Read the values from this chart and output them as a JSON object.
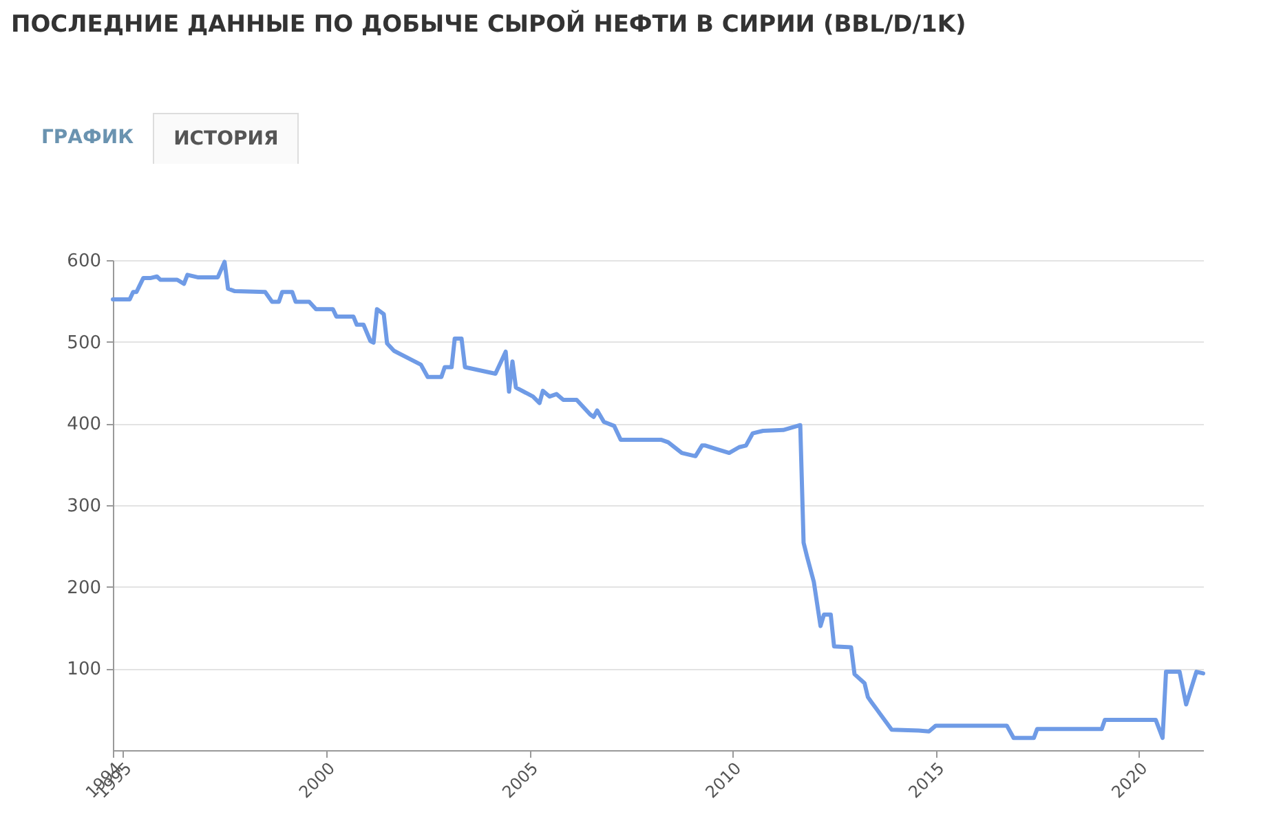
{
  "chart_data": {
    "type": "line",
    "title": "ПОСЛЕДНИЕ ДАННЫЕ ПО ДОБЫЧЕ СЫРОЙ НЕФТИ В СИРИИ (BBL/D/1K)",
    "annotations": [
      "ГРАФИК",
      "ИСТОРИЯ"
    ],
    "x": [
      "1994-10",
      "1995-03",
      "1995-04",
      "1995-05",
      "1995-07",
      "1995-09",
      "1995-11",
      "1995-12",
      "1996-05",
      "1996-07",
      "1996-08",
      "1996-11",
      "1997-05",
      "1997-07",
      "1997-08",
      "1997-10",
      "1998-07",
      "1998-09",
      "1998-11",
      "1998-12",
      "1999-03",
      "1999-04",
      "1999-08",
      "1999-10",
      "2000-03",
      "2000-04",
      "2000-09",
      "2000-10",
      "2000-12",
      "2001-02",
      "2001-03",
      "2001-04",
      "2001-06",
      "2001-07",
      "2001-09",
      "2002-05",
      "2002-07",
      "2002-11",
      "2002-12",
      "2003-02",
      "2003-03",
      "2003-05",
      "2003-06",
      "2004-03",
      "2004-06",
      "2004-07",
      "2004-08",
      "2004-09",
      "2005-02",
      "2005-04",
      "2005-05",
      "2005-07",
      "2005-09",
      "2005-11",
      "2006-03",
      "2006-07",
      "2006-08",
      "2006-09",
      "2006-11",
      "2007-02",
      "2007-04",
      "2008-04",
      "2008-06",
      "2008-10",
      "2009-02",
      "2009-04",
      "2009-05",
      "2009-08",
      "2009-12",
      "2010-03",
      "2010-05",
      "2010-07",
      "2010-10",
      "2011-04",
      "2011-09",
      "2011-10",
      "2011-11",
      "2012-01",
      "2012-03",
      "2012-04",
      "2012-06",
      "2012-07",
      "2012-12",
      "2013-01",
      "2013-04",
      "2013-05",
      "2013-06",
      "2013-09",
      "2013-12",
      "2014-08",
      "2014-11",
      "2015-01",
      "2016-10",
      "2016-12",
      "2017-06",
      "2017-07",
      "2019-02",
      "2019-03",
      "2020-06",
      "2020-08",
      "2020-09",
      "2021-01",
      "2021-03",
      "2021-06",
      "2021-08"
    ],
    "series": [
      {
        "color": "#6f9be6",
        "values": [
          552,
          552,
          561,
          561,
          578,
          578,
          580,
          576,
          576,
          571,
          582,
          579,
          579,
          598,
          565,
          562,
          561,
          549,
          549,
          561,
          561,
          549,
          549,
          540,
          540,
          531,
          531,
          521,
          521,
          501,
          499,
          540,
          534,
          498,
          489,
          472,
          457,
          457,
          469,
          469,
          504,
          504,
          469,
          461,
          488,
          439,
          476,
          444,
          433,
          425,
          440,
          433,
          436,
          429,
          429,
          411,
          408,
          416,
          402,
          397,
          380,
          380,
          377,
          364,
          360,
          373,
          373,
          369,
          364,
          371,
          373,
          388,
          391,
          392,
          398,
          254,
          237,
          206,
          152,
          166,
          166,
          127,
          126,
          93,
          82,
          65,
          59,
          42,
          25,
          24,
          23,
          30,
          30,
          15,
          15,
          26,
          26,
          37,
          37,
          15,
          96,
          96,
          56,
          96,
          94
        ]
      }
    ],
    "xlim": [
      "1994-10",
      "2021-08"
    ],
    "xticks": [
      {
        "value": "1994-10",
        "label": "1994"
      },
      {
        "value": "1995",
        "label": "1995"
      },
      {
        "value": "2000",
        "label": "2000"
      },
      {
        "value": "2005",
        "label": "2005"
      },
      {
        "value": "2010",
        "label": "2010"
      },
      {
        "value": "2015",
        "label": "2015"
      },
      {
        "value": "2020",
        "label": "2020"
      }
    ],
    "ylim": [
      0,
      600
    ],
    "yticks": [
      100,
      200,
      300,
      400,
      500,
      600
    ],
    "grid": "y",
    "legend": false,
    "marker": "none",
    "line_style": "solid"
  }
}
